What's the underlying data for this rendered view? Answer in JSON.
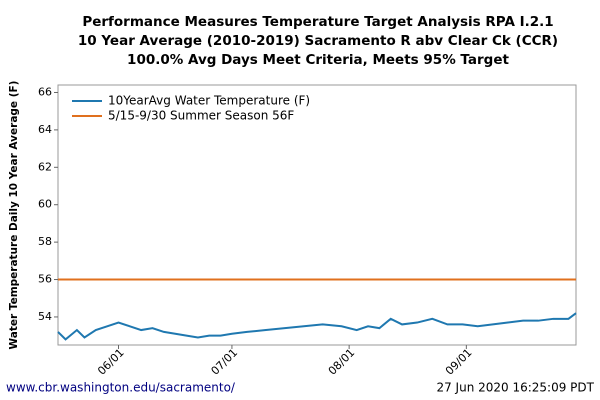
{
  "chart_data": {
    "type": "line",
    "title": [
      "Performance Measures Temperature Target Analysis RPA I.2.1",
      "10 Year Average (2010-2019) Sacramento R abv Clear Ck (CCR)",
      "100.0% Avg Days Meet Criteria, Meets 95% Target"
    ],
    "ylabel": "Water Temperature Daily 10 Year Average (F)",
    "xlim": [
      "05/16",
      "09/30"
    ],
    "xticks": [
      "06/01",
      "07/01",
      "08/01",
      "09/01"
    ],
    "ylim": [
      52.5,
      66.4
    ],
    "yticks": [
      54,
      56,
      58,
      60,
      62,
      64,
      66
    ],
    "grid": false,
    "legend": "upper left",
    "series": [
      {
        "name": "10YearAvg Water Temperature (F)",
        "color": "#1f78b0",
        "x": [
          "05/16",
          "05/18",
          "05/21",
          "05/23",
          "05/26",
          "05/29",
          "06/01",
          "06/04",
          "06/07",
          "06/10",
          "06/13",
          "06/16",
          "06/19",
          "06/22",
          "06/25",
          "06/28",
          "07/01",
          "07/05",
          "07/10",
          "07/15",
          "07/20",
          "07/25",
          "07/30",
          "08/03",
          "08/06",
          "08/09",
          "08/12",
          "08/15",
          "08/19",
          "08/23",
          "08/27",
          "08/31",
          "09/04",
          "09/08",
          "09/12",
          "09/16",
          "09/20",
          "09/24",
          "09/28",
          "09/30"
        ],
        "values": [
          53.2,
          52.8,
          53.3,
          52.9,
          53.3,
          53.5,
          53.7,
          53.5,
          53.3,
          53.4,
          53.2,
          53.1,
          53.0,
          52.9,
          53.0,
          53.0,
          53.1,
          53.2,
          53.3,
          53.4,
          53.5,
          53.6,
          53.5,
          53.3,
          53.5,
          53.4,
          53.9,
          53.6,
          53.7,
          53.9,
          53.6,
          53.6,
          53.5,
          53.6,
          53.7,
          53.8,
          53.8,
          53.9,
          53.9,
          54.2
        ]
      },
      {
        "name": "5/15-9/30 Summer Season 56F",
        "color": "#e0701e",
        "x": [
          "05/16",
          "09/30"
        ],
        "values": [
          56,
          56
        ]
      }
    ],
    "footer_left": "www.cbr.washington.edu/sacramento/",
    "footer_right": "27 Jun 2020 16:25:09 PDT"
  }
}
